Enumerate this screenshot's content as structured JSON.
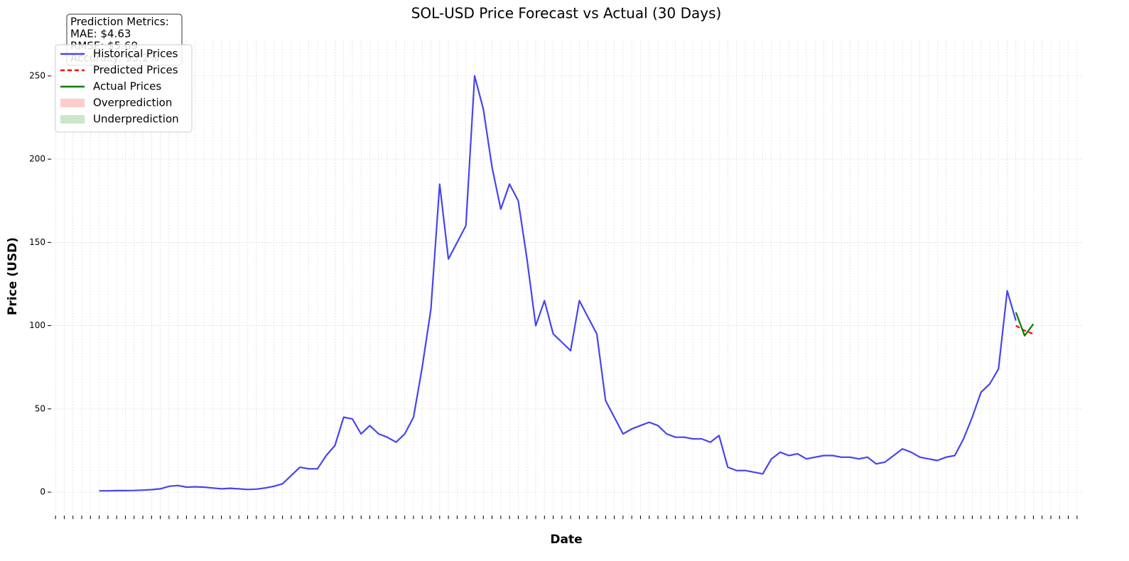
{
  "chart_data": {
    "type": "line",
    "title": "SOL-USD Price Forecast vs Actual (30 Days)",
    "xlabel": "Date",
    "ylabel": "Price (USD)",
    "annotation": [
      "Prediction Metrics:",
      "MAE: $4.63",
      "RMSE: $5.69",
      "Accuracy: 95.2%"
    ],
    "categories": [
      null,
      null,
      null,
      null,
      null,
      null,
      null,
      null,
      null,
      null,
      null,
      null,
      null,
      null,
      null,
      null,
      null,
      null,
      null,
      null,
      null,
      null,
      null,
      null,
      null,
      null,
      null,
      null,
      null,
      null,
      null,
      null,
      null,
      null,
      null,
      null,
      null,
      null,
      null,
      null,
      null,
      null,
      null,
      null,
      null,
      null,
      null,
      null,
      null,
      null,
      null,
      null,
      null,
      null,
      null,
      null,
      null,
      null,
      null,
      null,
      null,
      null,
      null,
      null,
      null,
      null,
      null,
      null,
      null,
      null,
      null,
      null,
      null,
      null,
      null,
      null,
      null,
      null,
      null,
      null,
      null,
      null,
      null,
      null,
      null,
      null,
      null,
      null,
      null,
      null,
      null,
      null,
      null,
      null,
      null,
      null,
      null,
      null,
      null,
      null,
      null,
      null,
      null,
      null,
      null,
      null,
      null,
      null,
      null,
      null,
      null,
      null,
      null,
      null,
      null,
      null,
      null,
      null
    ],
    "series": [
      {
        "name": "Historical Prices",
        "color": "#4545f0",
        "dash": false,
        "values": [
          null,
          null,
          null,
          null,
          null,
          0.8,
          0.8,
          0.9,
          0.9,
          1,
          1.2,
          1.5,
          2,
          3.5,
          4,
          3,
          3.2,
          3,
          2.5,
          2,
          2.3,
          2,
          1.6,
          1.8,
          2.5,
          3.5,
          5,
          10,
          15,
          14,
          14,
          22,
          28,
          45,
          44,
          35,
          40,
          35,
          33,
          30,
          35,
          45,
          75,
          110,
          185,
          140,
          150,
          160,
          250,
          230,
          195,
          170,
          185,
          175,
          140,
          100,
          115,
          95,
          90,
          85,
          115,
          105,
          95,
          55,
          45,
          35,
          38,
          40,
          42,
          40,
          35,
          33,
          33,
          32,
          32,
          30,
          34,
          15,
          13,
          13,
          12,
          11,
          20,
          24,
          22,
          23,
          20,
          21,
          22,
          22,
          21,
          21,
          20,
          21,
          17,
          18,
          22,
          26,
          24,
          21,
          20,
          19,
          21,
          22,
          32,
          45,
          60,
          65,
          74,
          121,
          103,
          null,
          null,
          null,
          null,
          null,
          null,
          null
        ]
      },
      {
        "name": "Predicted Prices",
        "color": "#ff0000",
        "dash": true,
        "values": [
          null,
          null,
          null,
          null,
          null,
          null,
          null,
          null,
          null,
          null,
          null,
          null,
          null,
          null,
          null,
          null,
          null,
          null,
          null,
          null,
          null,
          null,
          null,
          null,
          null,
          null,
          null,
          null,
          null,
          null,
          null,
          null,
          null,
          null,
          null,
          null,
          null,
          null,
          null,
          null,
          null,
          null,
          null,
          null,
          null,
          null,
          null,
          null,
          null,
          null,
          null,
          null,
          null,
          null,
          null,
          null,
          null,
          null,
          null,
          null,
          null,
          null,
          null,
          null,
          null,
          null,
          null,
          null,
          null,
          null,
          null,
          null,
          null,
          null,
          null,
          null,
          null,
          null,
          null,
          null,
          null,
          null,
          null,
          null,
          null,
          null,
          null,
          null,
          null,
          null,
          null,
          null,
          null,
          null,
          null,
          null,
          null,
          null,
          null,
          null,
          null,
          null,
          null,
          null,
          null,
          null,
          null,
          null,
          null,
          null,
          100,
          97,
          95,
          null,
          null,
          null,
          null,
          null
        ]
      },
      {
        "name": "Actual Prices",
        "color": "#008000",
        "dash": false,
        "values": [
          null,
          null,
          null,
          null,
          null,
          null,
          null,
          null,
          null,
          null,
          null,
          null,
          null,
          null,
          null,
          null,
          null,
          null,
          null,
          null,
          null,
          null,
          null,
          null,
          null,
          null,
          null,
          null,
          null,
          null,
          null,
          null,
          null,
          null,
          null,
          null,
          null,
          null,
          null,
          null,
          null,
          null,
          null,
          null,
          null,
          null,
          null,
          null,
          null,
          null,
          null,
          null,
          null,
          null,
          null,
          null,
          null,
          null,
          null,
          null,
          null,
          null,
          null,
          null,
          null,
          null,
          null,
          null,
          null,
          null,
          null,
          null,
          null,
          null,
          null,
          null,
          null,
          null,
          null,
          null,
          null,
          null,
          null,
          null,
          null,
          null,
          null,
          null,
          null,
          null,
          null,
          null,
          null,
          null,
          null,
          null,
          null,
          null,
          null,
          null,
          null,
          null,
          null,
          null,
          null,
          null,
          null,
          null,
          null,
          null,
          108,
          94,
          101,
          null,
          null,
          null,
          null,
          null
        ]
      }
    ],
    "legend_patches": [
      {
        "name": "Overprediction",
        "color": "#ffcccc"
      },
      {
        "name": "Underprediction",
        "color": "#cce6cc"
      }
    ],
    "legend": "upper left",
    "ylim": [
      -11.5,
      271.3
    ],
    "yticks": [
      0,
      50,
      100,
      150,
      200,
      250
    ],
    "grid": true
  }
}
